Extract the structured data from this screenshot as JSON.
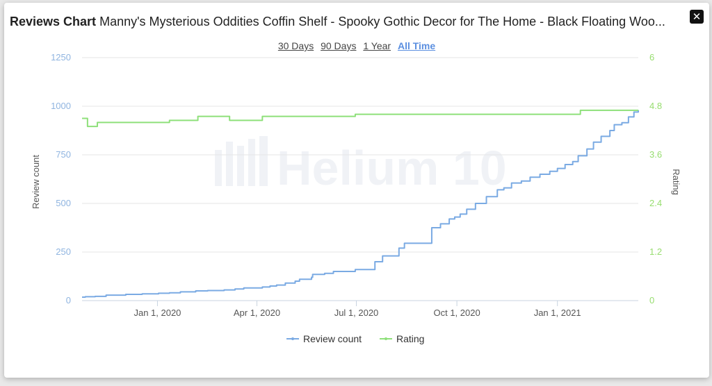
{
  "header": {
    "label": "Reviews Chart",
    "product_title": "Manny's Mysterious Oddities Coffin Shelf - Spooky Gothic Decor for The Home - Black Floating Woo..."
  },
  "close_icon": "close-icon",
  "time_ranges": [
    {
      "label": "30 Days",
      "active": false
    },
    {
      "label": "90 Days",
      "active": false
    },
    {
      "label": "1 Year",
      "active": false
    },
    {
      "label": "All Time",
      "active": true
    }
  ],
  "watermark": "Helium 10",
  "colors": {
    "review": "#7aaae3",
    "rating": "#8ee07a",
    "left_axis": "#8fb4e0",
    "right_axis": "#96dd6e",
    "grid": "#e6e6e6"
  },
  "chart_data": {
    "type": "line",
    "title": "Reviews Chart",
    "ylabel_left": "Review count",
    "ylabel_right": "Rating",
    "ylim_left": [
      0,
      1250
    ],
    "ylim_right": [
      0,
      6
    ],
    "yticks_left": [
      "0",
      "250",
      "500",
      "750",
      "1000",
      "1250"
    ],
    "yticks_right": [
      "0",
      "1.2",
      "2.4",
      "3.6",
      "4.8",
      "6"
    ],
    "x_range_days": [
      0,
      509
    ],
    "xticks": [
      {
        "label": "Jan 1, 2020",
        "day": 69
      },
      {
        "label": "Apr 1, 2020",
        "day": 160
      },
      {
        "label": "Jul 1, 2020",
        "day": 251
      },
      {
        "label": "Oct 1, 2020",
        "day": 343
      },
      {
        "label": "Jan 1, 2021",
        "day": 435
      }
    ],
    "legend": [
      "Review count",
      "Rating"
    ],
    "legend_position": "bottom-center",
    "series": [
      {
        "name": "Review count",
        "step": true,
        "points": [
          [
            0,
            18
          ],
          [
            3,
            20
          ],
          [
            12,
            22
          ],
          [
            22,
            28
          ],
          [
            40,
            32
          ],
          [
            55,
            35
          ],
          [
            70,
            38
          ],
          [
            80,
            40
          ],
          [
            90,
            45
          ],
          [
            104,
            50
          ],
          [
            115,
            52
          ],
          [
            130,
            55
          ],
          [
            140,
            60
          ],
          [
            148,
            65
          ],
          [
            165,
            70
          ],
          [
            172,
            75
          ],
          [
            178,
            80
          ],
          [
            186,
            90
          ],
          [
            195,
            100
          ],
          [
            199,
            110
          ],
          [
            210,
            120
          ],
          [
            211,
            135
          ],
          [
            222,
            140
          ],
          [
            230,
            150
          ],
          [
            250,
            160
          ],
          [
            268,
            200
          ],
          [
            275,
            230
          ],
          [
            290,
            270
          ],
          [
            295,
            295
          ],
          [
            320,
            375
          ],
          [
            328,
            395
          ],
          [
            336,
            420
          ],
          [
            341,
            430
          ],
          [
            346,
            445
          ],
          [
            352,
            470
          ],
          [
            360,
            500
          ],
          [
            370,
            535
          ],
          [
            380,
            570
          ],
          [
            386,
            580
          ],
          [
            393,
            605
          ],
          [
            402,
            615
          ],
          [
            410,
            635
          ],
          [
            419,
            650
          ],
          [
            428,
            665
          ],
          [
            435,
            680
          ],
          [
            442,
            700
          ],
          [
            449,
            715
          ],
          [
            454,
            745
          ],
          [
            462,
            780
          ],
          [
            468,
            815
          ],
          [
            475,
            845
          ],
          [
            483,
            875
          ],
          [
            487,
            905
          ],
          [
            494,
            915
          ],
          [
            500,
            945
          ],
          [
            505,
            970
          ],
          [
            509,
            980
          ]
        ]
      },
      {
        "name": "Rating",
        "step": true,
        "points": [
          [
            0,
            4.5
          ],
          [
            5,
            4.3
          ],
          [
            14,
            4.4
          ],
          [
            80,
            4.45
          ],
          [
            106,
            4.55
          ],
          [
            135,
            4.45
          ],
          [
            165,
            4.55
          ],
          [
            250,
            4.6
          ],
          [
            456,
            4.7
          ],
          [
            509,
            4.7
          ]
        ]
      }
    ]
  }
}
